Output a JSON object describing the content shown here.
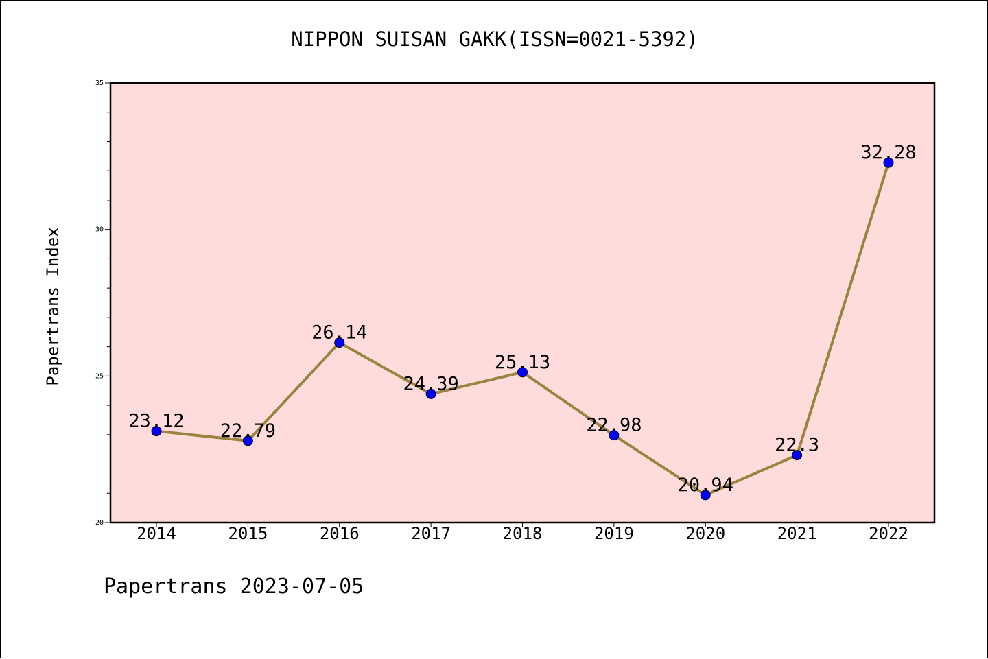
{
  "chart_data": {
    "type": "line",
    "title": "NIPPON SUISAN GAKK(ISSN=0021-5392)",
    "xlabel": "",
    "ylabel": "Papertrans Index",
    "categories": [
      "2014",
      "2015",
      "2016",
      "2017",
      "2018",
      "2019",
      "2020",
      "2021",
      "2022"
    ],
    "values": [
      23.12,
      22.79,
      26.14,
      24.39,
      25.13,
      22.98,
      20.94,
      22.3,
      32.28
    ],
    "data_labels": [
      "23.12",
      "22.79",
      "26.14",
      "24.39",
      "25.13",
      "22.98",
      "20.94",
      "22.3",
      "32.28"
    ],
    "ylim": [
      20,
      35
    ],
    "yticks": [
      20,
      25,
      30,
      35
    ],
    "ytick_labels": [
      "20",
      "25",
      "30",
      "35"
    ],
    "grid": false,
    "legend": "none",
    "colors": {
      "plot_background": "#ffdcdb",
      "line": "#9b8440",
      "marker": "#0000ff",
      "axes": "#000000"
    }
  },
  "footer": {
    "text": "Papertrans 2023-07-05"
  }
}
